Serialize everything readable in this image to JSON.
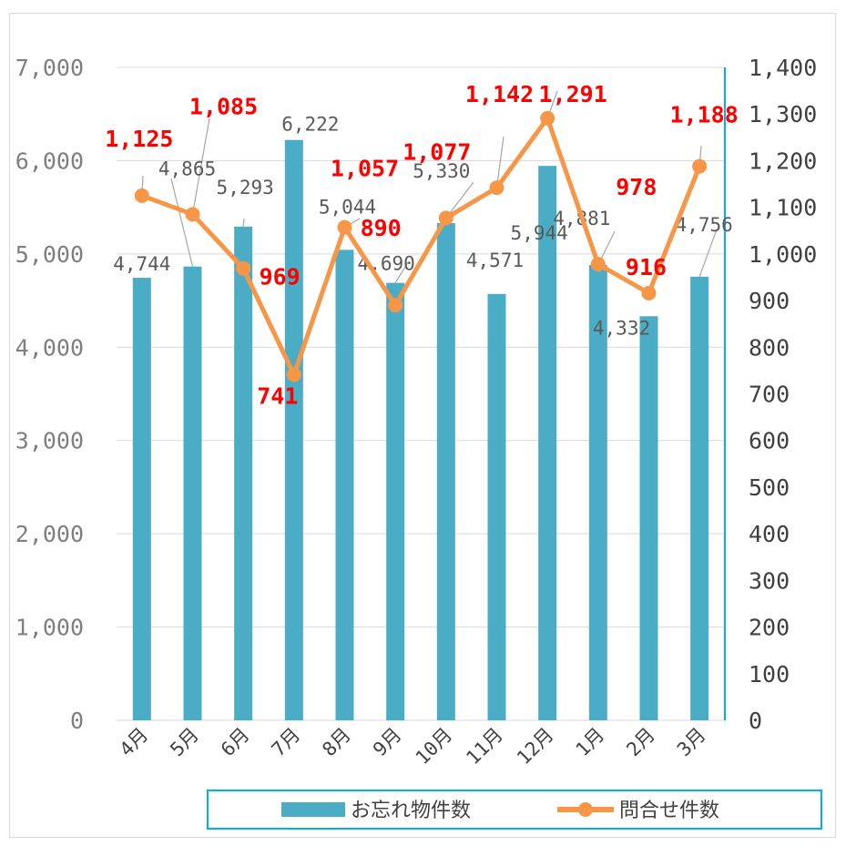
{
  "chart_data": {
    "type": "bar",
    "categories": [
      "4月",
      "5月",
      "6月",
      "7月",
      "8月",
      "9月",
      "10月",
      "11月",
      "12月",
      "1月",
      "2月",
      "3月"
    ],
    "series": [
      {
        "name": "お忘れ物件数",
        "type": "bar",
        "axis": "left",
        "values": [
          4744,
          4865,
          5293,
          6222,
          5044,
          4690,
          5330,
          4571,
          5944,
          4881,
          4332,
          4756
        ],
        "labels": [
          "4,744",
          "4,865",
          "5,293",
          "6,222",
          "5,044",
          "4,690",
          "5,330",
          "4,571",
          "5,944",
          "4,881",
          "4,332",
          "4,756"
        ]
      },
      {
        "name": "問合せ件数",
        "type": "line",
        "axis": "right",
        "values": [
          1125,
          1085,
          969,
          741,
          1057,
          890,
          1077,
          1142,
          1291,
          978,
          916,
          1188
        ],
        "labels": [
          "1,125",
          "1,085",
          "969",
          "741",
          "1,057",
          "890",
          "1,077",
          "1,142",
          "1,291",
          "978",
          "916",
          "1,188"
        ]
      }
    ],
    "y_left": {
      "min": 0,
      "max": 7000,
      "ticks": [
        "0",
        "1,000",
        "2,000",
        "3,000",
        "4,000",
        "5,000",
        "6,000",
        "7,000"
      ]
    },
    "y_right": {
      "min": 0,
      "max": 1400,
      "ticks": [
        "0",
        "100",
        "200",
        "300",
        "400",
        "500",
        "600",
        "700",
        "800",
        "900",
        "1,000",
        "1,100",
        "1,200",
        "1,300",
        "1,400"
      ]
    },
    "grid": true,
    "legend": "bottom",
    "colors": {
      "bar": "#4bacc6",
      "line": "#f79646",
      "line_label": "#ff0000",
      "grid": "#d9d9d9",
      "right_axis": "#00b0f0"
    }
  }
}
